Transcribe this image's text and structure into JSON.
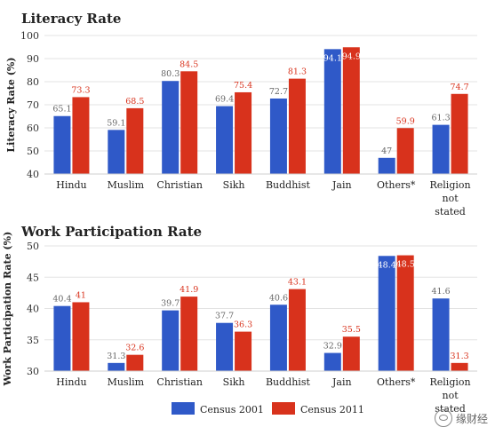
{
  "chart_data": [
    {
      "type": "bar",
      "title": "Literacy Rate",
      "ylabel": "Literacy Rate (%)",
      "xlabel": "",
      "ylim": [
        40,
        100
      ],
      "yticks": [
        "40",
        "50",
        "60",
        "70",
        "80",
        "90",
        "100"
      ],
      "categories": [
        [
          "Hindu"
        ],
        [
          "Muslim"
        ],
        [
          "Christian"
        ],
        [
          "Sikh"
        ],
        [
          "Buddhist"
        ],
        [
          "Jain"
        ],
        [
          "Others*"
        ],
        [
          "Religion",
          "not",
          "stated"
        ]
      ],
      "series": [
        {
          "name": "Census 2001",
          "color": "#2f59c8",
          "values": [
            65.1,
            59.1,
            80.3,
            69.4,
            72.7,
            94.1,
            47,
            61.3
          ],
          "labels": [
            "65.1",
            "59.1",
            "80.3",
            "69.4",
            "72.7",
            "94.1",
            "47",
            "61.3"
          ]
        },
        {
          "name": "Census 2011",
          "color": "#d8321c",
          "values": [
            73.3,
            68.5,
            84.5,
            75.4,
            81.3,
            94.9,
            59.9,
            74.7
          ],
          "labels": [
            "73.3",
            "68.5",
            "84.5",
            "75.4",
            "81.3",
            "94.9",
            "59.9",
            "74.7"
          ]
        }
      ],
      "grid": true
    },
    {
      "type": "bar",
      "title": "Work Participation Rate",
      "ylabel": "Work Participation Rate (%)",
      "xlabel": "",
      "ylim": [
        30,
        50
      ],
      "yticks": [
        "30",
        "35",
        "40",
        "45",
        "50"
      ],
      "categories": [
        [
          "Hindu"
        ],
        [
          "Muslim"
        ],
        [
          "Christian"
        ],
        [
          "Sikh"
        ],
        [
          "Buddhist"
        ],
        [
          "Jain"
        ],
        [
          "Others*"
        ],
        [
          "Religion",
          "not",
          "stated"
        ]
      ],
      "series": [
        {
          "name": "Census 2001",
          "color": "#2f59c8",
          "values": [
            40.4,
            31.3,
            39.7,
            37.7,
            40.6,
            32.9,
            48.4,
            41.6
          ],
          "labels": [
            "40.4",
            "31.3",
            "39.7",
            "37.7",
            "40.6",
            "32.9",
            "48.4",
            "41.6"
          ]
        },
        {
          "name": "Census 2011",
          "color": "#d8321c",
          "values": [
            41,
            32.6,
            41.9,
            36.3,
            43.1,
            35.5,
            48.5,
            31.3
          ],
          "labels": [
            "41",
            "32.6",
            "41.9",
            "36.3",
            "43.1",
            "35.5",
            "48.5",
            "31.3"
          ]
        }
      ],
      "grid": true
    }
  ],
  "legend": [
    {
      "label": "Census 2001",
      "color": "#2f59c8"
    },
    {
      "label": "Census 2011",
      "color": "#d8321c"
    }
  ],
  "watermark": {
    "text": "缘财经",
    "icon": "wechat-icon"
  }
}
